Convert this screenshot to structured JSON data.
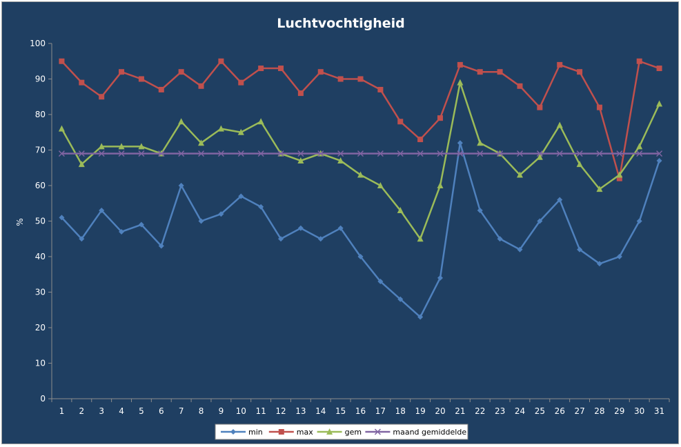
{
  "chart_data": {
    "type": "line",
    "title": "Luchtvochtigheid",
    "ylabel": "%",
    "xlabel": "",
    "ylim": [
      0,
      100
    ],
    "y_ticks": [
      0,
      10,
      20,
      30,
      40,
      50,
      60,
      70,
      80,
      90,
      100
    ],
    "categories": [
      "1",
      "2",
      "3",
      "4",
      "5",
      "6",
      "7",
      "8",
      "9",
      "10",
      "11",
      "12",
      "13",
      "14",
      "15",
      "16",
      "17",
      "18",
      "19",
      "20",
      "21",
      "22",
      "23",
      "24",
      "25",
      "26",
      "27",
      "28",
      "29",
      "30",
      "31"
    ],
    "grid": false,
    "legend_position": "bottom",
    "series": [
      {
        "name": "min",
        "color": "#4f81bd",
        "marker": "diamond",
        "values": [
          51,
          45,
          53,
          47,
          49,
          43,
          60,
          50,
          52,
          57,
          54,
          45,
          48,
          45,
          48,
          40,
          33,
          28,
          23,
          34,
          72,
          53,
          45,
          42,
          50,
          56,
          42,
          38,
          40,
          50,
          67
        ]
      },
      {
        "name": "max",
        "color": "#c0504d",
        "marker": "square",
        "values": [
          95,
          89,
          85,
          92,
          90,
          87,
          92,
          88,
          95,
          89,
          93,
          93,
          86,
          92,
          90,
          90,
          87,
          78,
          73,
          79,
          94,
          92,
          92,
          88,
          82,
          94,
          92,
          82,
          62,
          95,
          93
        ]
      },
      {
        "name": "gem",
        "color": "#9bbb59",
        "marker": "triangle",
        "values": [
          76,
          66,
          71,
          71,
          71,
          69,
          78,
          72,
          76,
          75,
          78,
          69,
          67,
          69,
          67,
          63,
          60,
          53,
          45,
          60,
          89,
          72,
          69,
          63,
          68,
          77,
          66,
          59,
          63,
          71,
          83
        ]
      },
      {
        "name": "maand gemiddelde",
        "color": "#8064a2",
        "marker": "x",
        "values": [
          69,
          69,
          69,
          69,
          69,
          69,
          69,
          69,
          69,
          69,
          69,
          69,
          69,
          69,
          69,
          69,
          69,
          69,
          69,
          69,
          69,
          69,
          69,
          69,
          69,
          69,
          69,
          69,
          69,
          69,
          69
        ]
      }
    ]
  }
}
